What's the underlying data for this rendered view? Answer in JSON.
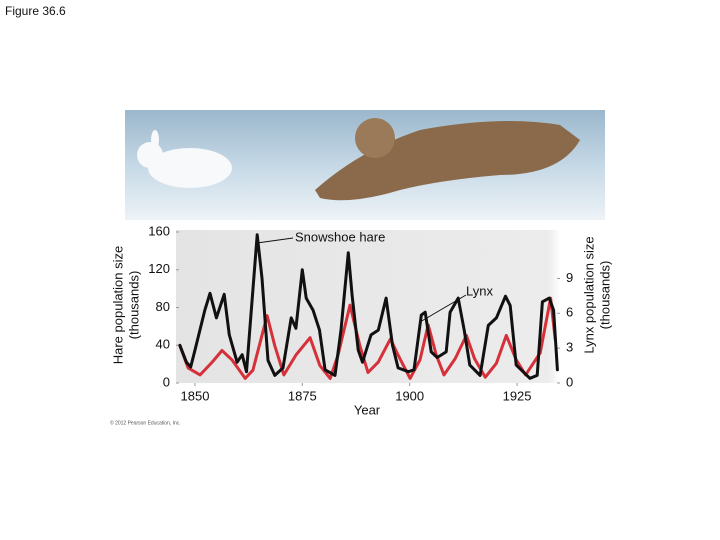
{
  "chart_data": {
    "type": "line",
    "title": "Figure 36.6",
    "credit": "© 2012 Pearson Education, Inc.",
    "xlabel": "Year",
    "ylabel": [
      "Hare population size",
      "(thousands)"
    ],
    "y2label": [
      "Lynx population size",
      "(thousands)"
    ],
    "xlim": [
      1845,
      1935
    ],
    "xticks": [
      1850,
      1875,
      1900,
      1925
    ],
    "ylim": [
      0,
      160
    ],
    "yticks": [
      0,
      40,
      80,
      120,
      160
    ],
    "y2lim": [
      0,
      13
    ],
    "y2ticks": [
      0,
      3,
      6,
      9
    ],
    "grid": false,
    "series": [
      {
        "name": "Snowshoe hare",
        "color": "#111111",
        "axis": "y",
        "x": [
          1846.5,
          1848,
          1849,
          1850,
          1852.3,
          1853.5,
          1855,
          1856.8,
          1858,
          1859.8,
          1861,
          1862,
          1864.5,
          1865.6,
          1867,
          1868.6,
          1870.5,
          1872.4,
          1873.5,
          1875,
          1875.9,
          1877.5,
          1879,
          1880.3,
          1882.6,
          1884,
          1885.7,
          1886.6,
          1888,
          1889,
          1891,
          1892.7,
          1894.5,
          1896,
          1897.3,
          1899.7,
          1901,
          1902.7,
          1903.6,
          1905,
          1906.4,
          1908.5,
          1909.4,
          1911.3,
          1912.7,
          1914,
          1916.4,
          1918.3,
          1920.2,
          1922.3,
          1923.4,
          1924.8,
          1928,
          1929.7,
          1930.9,
          1932.5,
          1933.5,
          1934.4
        ],
        "values": [
          40,
          22,
          17,
          35,
          77,
          95,
          69,
          94,
          51,
          22,
          30,
          12,
          157,
          111,
          24,
          8,
          16,
          69,
          58,
          120,
          90,
          77,
          56,
          14,
          8,
          56,
          138,
          93,
          35,
          22,
          51,
          56,
          90,
          40,
          16,
          12,
          14,
          72,
          75,
          33,
          27,
          33,
          75,
          90,
          56,
          19,
          8,
          61,
          69,
          92,
          82,
          19,
          5,
          8,
          86,
          90,
          77,
          14
        ]
      },
      {
        "name": "Lynx",
        "color": "#d6303a",
        "axis": "y2",
        "x": [
          1846.5,
          1848.4,
          1851.2,
          1854,
          1856.3,
          1858.6,
          1861.7,
          1863.5,
          1866.8,
          1868.6,
          1870.7,
          1873.5,
          1876.8,
          1879.1,
          1881.5,
          1883.3,
          1886.1,
          1888.4,
          1890.3,
          1892.7,
          1895.5,
          1897.3,
          1900.1,
          1902.4,
          1904.3,
          1906.2,
          1908,
          1910.6,
          1913.2,
          1915.1,
          1917.6,
          1920.2,
          1922.5,
          1924.8,
          1927,
          1930.4,
          1932.8,
          1933.9
        ],
        "values": [
          3.2,
          1.3,
          0.7,
          1.8,
          2.8,
          2,
          0.4,
          1.1,
          5.8,
          3.2,
          0.7,
          2.4,
          3.9,
          1.5,
          0.4,
          2.4,
          6.7,
          3.2,
          0.9,
          1.8,
          3.8,
          2.4,
          0.4,
          2,
          5,
          2.4,
          0.7,
          2.1,
          4.1,
          2.1,
          0.5,
          1.7,
          4.1,
          2,
          0.7,
          2.6,
          7.3,
          3.7
        ]
      }
    ]
  }
}
